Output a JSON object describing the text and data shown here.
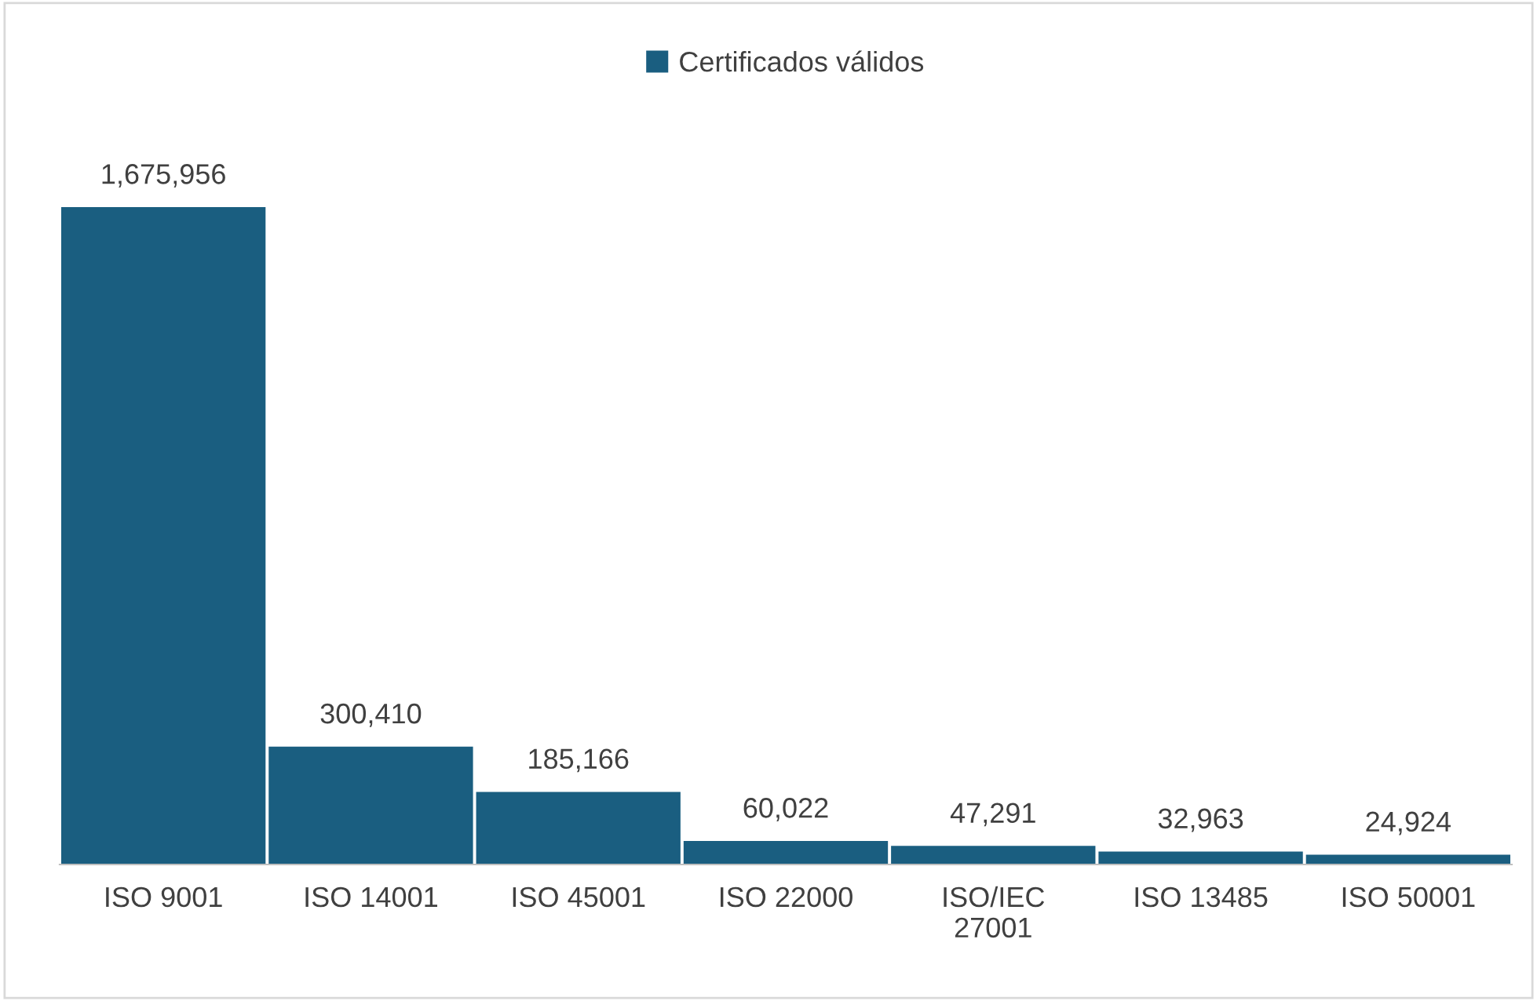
{
  "chart_data": {
    "type": "bar",
    "categories": [
      "ISO 9001",
      "ISO 14001",
      "ISO 45001",
      "ISO 22000",
      "ISO/IEC\n27001",
      "ISO 13485",
      "ISO 50001"
    ],
    "series": [
      {
        "name": "Certificados válidos",
        "color": "#1a5e80",
        "values": [
          1675956,
          300410,
          185166,
          60022,
          47291,
          32963,
          24924
        ],
        "value_labels": [
          "1,675,956",
          "300,410",
          "185,166",
          "60,022",
          "47,291",
          "32,963",
          "24,924"
        ]
      }
    ],
    "legend": "top",
    "grid": false
  }
}
